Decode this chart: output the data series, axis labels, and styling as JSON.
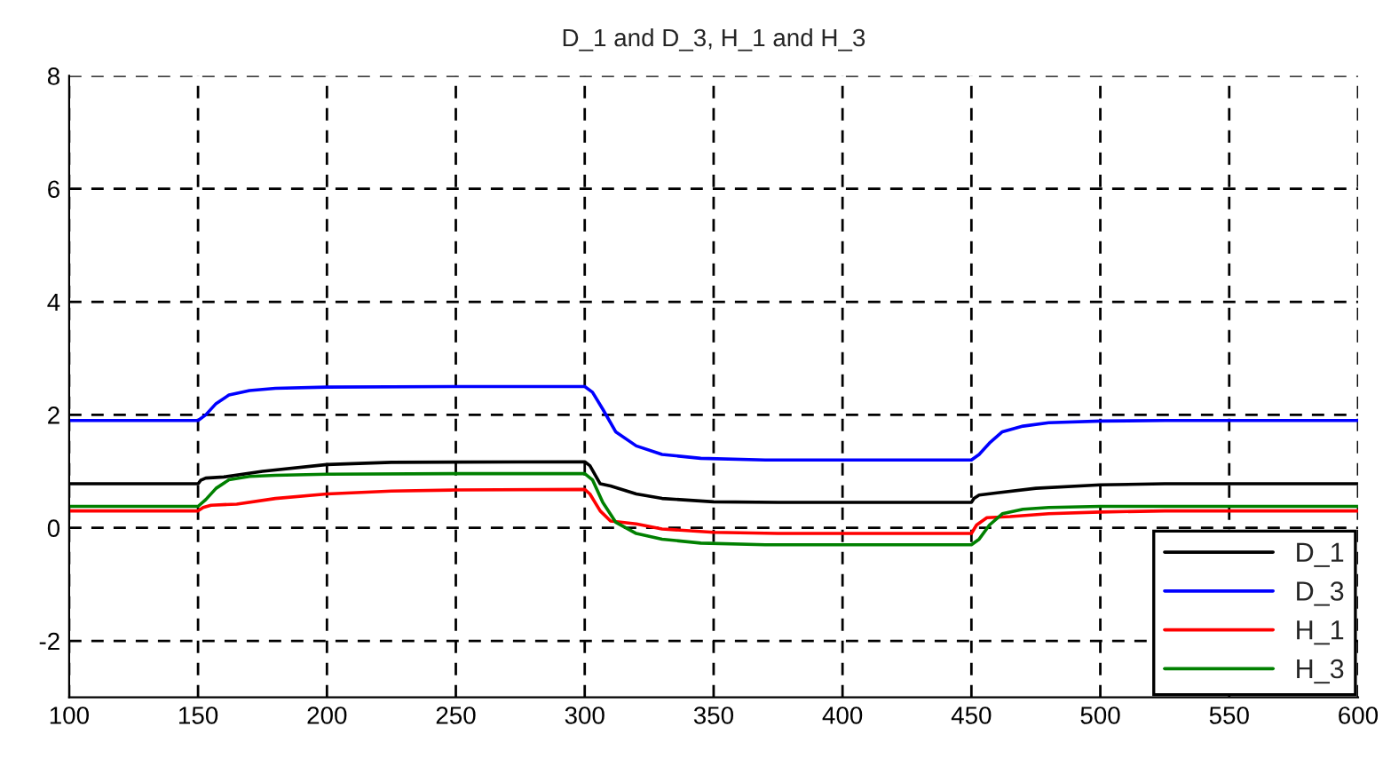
{
  "chart_data": {
    "type": "line",
    "title": "D_1 and D_3, H_1 and H_3",
    "xlim": [
      100,
      600
    ],
    "ylim": [
      -3,
      8
    ],
    "xticks": [
      100,
      150,
      200,
      250,
      300,
      350,
      400,
      450,
      500,
      550,
      600
    ],
    "yticks": [
      -2,
      0,
      2,
      4,
      6,
      8
    ],
    "grid": true,
    "legend": "bottom right",
    "line_style": "solid",
    "marker": "none",
    "series": [
      {
        "name": "D_1",
        "color": "#000000",
        "x": [
          100,
          150,
          151,
          153,
          160,
          175,
          200,
          225,
          300,
          302,
          306,
          310,
          320,
          330,
          350,
          375,
          450,
          451,
          453,
          460,
          475,
          500,
          525,
          600
        ],
        "values": [
          0.78,
          0.78,
          0.84,
          0.88,
          0.9,
          1.0,
          1.12,
          1.16,
          1.17,
          1.1,
          0.78,
          0.74,
          0.6,
          0.52,
          0.46,
          0.45,
          0.45,
          0.52,
          0.58,
          0.62,
          0.7,
          0.76,
          0.78,
          0.78
        ]
      },
      {
        "name": "D_3",
        "color": "#0000ff",
        "x": [
          100,
          150,
          153,
          157,
          162,
          170,
          180,
          200,
          250,
          300,
          303,
          307,
          312,
          320,
          330,
          345,
          370,
          450,
          453,
          457,
          462,
          470,
          480,
          500,
          525,
          600
        ],
        "values": [
          1.9,
          1.9,
          2.0,
          2.2,
          2.35,
          2.43,
          2.47,
          2.49,
          2.5,
          2.5,
          2.4,
          2.1,
          1.7,
          1.45,
          1.3,
          1.23,
          1.2,
          1.2,
          1.3,
          1.5,
          1.7,
          1.8,
          1.86,
          1.89,
          1.9,
          1.9
        ]
      },
      {
        "name": "H_1",
        "color": "#ff0000",
        "x": [
          100,
          150,
          152,
          155,
          165,
          180,
          200,
          225,
          250,
          300,
          302,
          306,
          310,
          320,
          330,
          350,
          375,
          450,
          452,
          456,
          465,
          480,
          500,
          525,
          600
        ],
        "values": [
          0.3,
          0.3,
          0.36,
          0.4,
          0.42,
          0.52,
          0.6,
          0.65,
          0.67,
          0.68,
          0.6,
          0.3,
          0.12,
          0.07,
          -0.02,
          -0.08,
          -0.1,
          -0.1,
          0.05,
          0.18,
          0.2,
          0.25,
          0.28,
          0.3,
          0.3
        ]
      },
      {
        "name": "H_3",
        "color": "#008000",
        "x": [
          100,
          150,
          153,
          157,
          162,
          170,
          180,
          200,
          250,
          300,
          303,
          307,
          312,
          320,
          330,
          345,
          370,
          450,
          453,
          457,
          462,
          470,
          480,
          500,
          600
        ],
        "values": [
          0.38,
          0.38,
          0.5,
          0.7,
          0.85,
          0.91,
          0.93,
          0.95,
          0.96,
          0.96,
          0.85,
          0.45,
          0.1,
          -0.1,
          -0.2,
          -0.27,
          -0.3,
          -0.3,
          -0.2,
          0.05,
          0.25,
          0.33,
          0.36,
          0.38,
          0.38
        ]
      }
    ]
  }
}
